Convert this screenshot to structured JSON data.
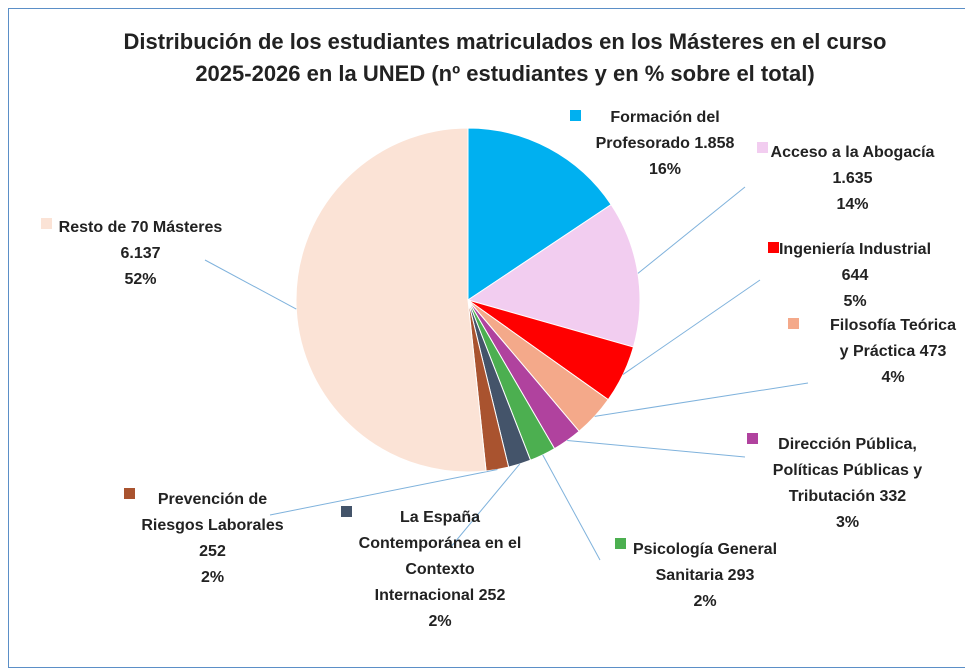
{
  "chart_data": {
    "type": "pie",
    "title": "Distribución de los estudiantes matriculados en los Másteres en el curso 2025-2026 en la UNED (nº estudiantes y en % sobre el total)",
    "categories": [
      "Formación del Profesorado",
      "Acceso a la Abogacía",
      "Ingeniería Industrial",
      "Filosofía Teórica y Práctica",
      "Dirección Pública, Políticas Públicas y Tributación",
      "Psicología General Sanitaria",
      "La España Contemporánea en el Contexto Internacional",
      "Prevención de Riesgos Laborales",
      "Resto de 70 Másteres"
    ],
    "values": [
      1858,
      1635,
      644,
      473,
      332,
      293,
      252,
      252,
      6137
    ],
    "value_labels": [
      "1.858",
      "1.635",
      "644",
      "473",
      "332",
      "293",
      "252",
      "252",
      "6.137"
    ],
    "percentages": [
      16,
      14,
      5,
      4,
      3,
      2,
      2,
      2,
      52
    ],
    "percent_labels": [
      "16%",
      "14%",
      "5%",
      "4%",
      "3%",
      "2%",
      "2%",
      "2%",
      "52%"
    ],
    "colors": [
      "#00b0f0",
      "#f2cdf0",
      "#ff0000",
      "#f4a98a",
      "#b0429e",
      "#4caf50",
      "#44546a",
      "#a9532f",
      "#fbe3d6"
    ]
  }
}
